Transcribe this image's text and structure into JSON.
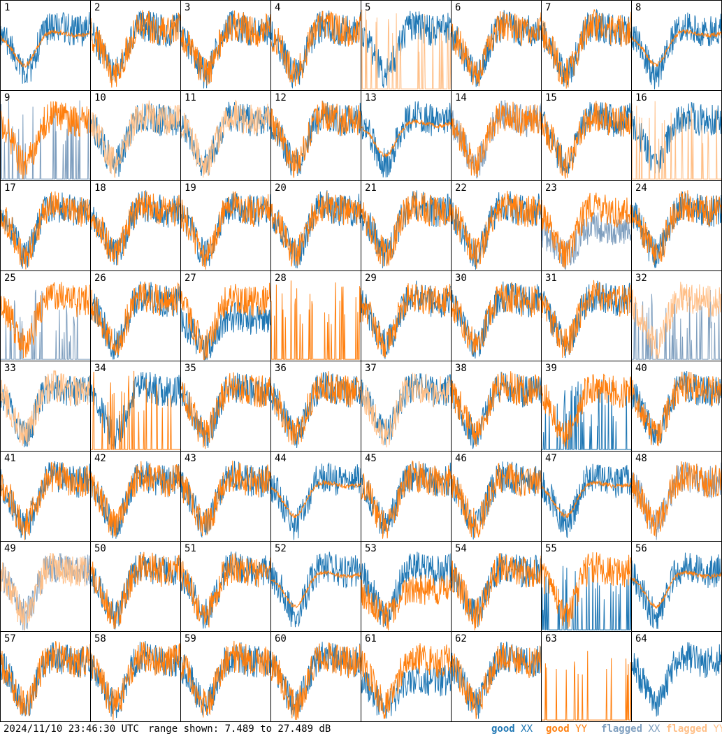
{
  "footer": {
    "timestamp": "2024/11/10 23:46:30 UTC",
    "range_text": "range shown: 7.489 to 27.489 dB"
  },
  "legend": [
    {
      "pre": "good",
      "pol": "XX",
      "color": "#1f77b4"
    },
    {
      "pre": "good",
      "pol": "YY",
      "color": "#ff7f0e"
    },
    {
      "pre": "flagged",
      "pol": "XX",
      "color": "#7f9fbf"
    },
    {
      "pre": "flagged",
      "pol": "YY",
      "color": "#ffbf87"
    }
  ],
  "colors": {
    "good_xx": "#1f77b4",
    "good_yy": "#ff7f0e",
    "flagged_xx": "#7f9fbf",
    "flagged_yy": "#ffbf87"
  },
  "chart_data": {
    "type": "line",
    "ylim": [
      7.489,
      27.489
    ],
    "grid": false,
    "panels": [
      {
        "label": "1",
        "xx": "good",
        "yy": "good",
        "xx_shape": "normal",
        "yy_shape": "flat"
      },
      {
        "label": "2",
        "xx": "good",
        "yy": "good",
        "xx_shape": "normal",
        "yy_shape": "normal"
      },
      {
        "label": "3",
        "xx": "good",
        "yy": "good",
        "xx_shape": "normal",
        "yy_shape": "normal"
      },
      {
        "label": "4",
        "xx": "good",
        "yy": "good",
        "xx_shape": "normal",
        "yy_shape": "normal"
      },
      {
        "label": "5",
        "xx": "good",
        "yy": "flagged",
        "xx_shape": "normal",
        "yy_shape": "spiky"
      },
      {
        "label": "6",
        "xx": "good",
        "yy": "good",
        "xx_shape": "normal",
        "yy_shape": "normal"
      },
      {
        "label": "7",
        "xx": "good",
        "yy": "good",
        "xx_shape": "normal",
        "yy_shape": "normal"
      },
      {
        "label": "8",
        "xx": "good",
        "yy": "good",
        "xx_shape": "normal",
        "yy_shape": "flat"
      },
      {
        "label": "9",
        "xx": "flagged",
        "yy": "good",
        "xx_shape": "spiky",
        "yy_shape": "normal"
      },
      {
        "label": "10",
        "xx": "good",
        "yy": "flagged",
        "xx_shape": "normal",
        "yy_shape": "normal"
      },
      {
        "label": "11",
        "xx": "good",
        "yy": "flagged",
        "xx_shape": "normal",
        "yy_shape": "normal"
      },
      {
        "label": "12",
        "xx": "good",
        "yy": "good",
        "xx_shape": "normal",
        "yy_shape": "normal"
      },
      {
        "label": "13",
        "xx": "good",
        "yy": "good",
        "xx_shape": "normal",
        "yy_shape": "flat"
      },
      {
        "label": "14",
        "xx": "flagged",
        "yy": "good",
        "xx_shape": "normal",
        "yy_shape": "normal"
      },
      {
        "label": "15",
        "xx": "good",
        "yy": "good",
        "xx_shape": "normal",
        "yy_shape": "normal"
      },
      {
        "label": "16",
        "xx": "good",
        "yy": "flagged",
        "xx_shape": "normal",
        "yy_shape": "spiky"
      },
      {
        "label": "17",
        "xx": "good",
        "yy": "good",
        "xx_shape": "normal",
        "yy_shape": "normal"
      },
      {
        "label": "18",
        "xx": "good",
        "yy": "good",
        "xx_shape": "normal",
        "yy_shape": "normal"
      },
      {
        "label": "19",
        "xx": "good",
        "yy": "good",
        "xx_shape": "normal",
        "yy_shape": "normal"
      },
      {
        "label": "20",
        "xx": "good",
        "yy": "good",
        "xx_shape": "normal",
        "yy_shape": "normal"
      },
      {
        "label": "21",
        "xx": "good",
        "yy": "good",
        "xx_shape": "normal",
        "yy_shape": "normal"
      },
      {
        "label": "22",
        "xx": "good",
        "yy": "good",
        "xx_shape": "normal",
        "yy_shape": "normal"
      },
      {
        "label": "23",
        "xx": "flagged",
        "yy": "good",
        "xx_shape": "low",
        "yy_shape": "normal"
      },
      {
        "label": "24",
        "xx": "good",
        "yy": "good",
        "xx_shape": "normal",
        "yy_shape": "normal"
      },
      {
        "label": "25",
        "xx": "flagged",
        "yy": "good",
        "xx_shape": "sparse",
        "yy_shape": "normal"
      },
      {
        "label": "26",
        "xx": "good",
        "yy": "good",
        "xx_shape": "normal",
        "yy_shape": "normal"
      },
      {
        "label": "27",
        "xx": "good",
        "yy": "good",
        "xx_shape": "low",
        "yy_shape": "normal"
      },
      {
        "label": "28",
        "xx": "none",
        "yy": "good",
        "xx_shape": "none",
        "yy_shape": "spiky"
      },
      {
        "label": "29",
        "xx": "good",
        "yy": "good",
        "xx_shape": "normal",
        "yy_shape": "normal"
      },
      {
        "label": "30",
        "xx": "good",
        "yy": "good",
        "xx_shape": "normal",
        "yy_shape": "normal"
      },
      {
        "label": "31",
        "xx": "good",
        "yy": "good",
        "xx_shape": "normal",
        "yy_shape": "normal"
      },
      {
        "label": "32",
        "xx": "flagged",
        "yy": "flagged",
        "xx_shape": "sparse",
        "yy_shape": "normal"
      },
      {
        "label": "33",
        "xx": "good",
        "yy": "flagged",
        "xx_shape": "normal",
        "yy_shape": "normal"
      },
      {
        "label": "34",
        "xx": "good",
        "yy": "good",
        "xx_shape": "normal",
        "yy_shape": "spiky"
      },
      {
        "label": "35",
        "xx": "good",
        "yy": "good",
        "xx_shape": "normal",
        "yy_shape": "normal"
      },
      {
        "label": "36",
        "xx": "good",
        "yy": "good",
        "xx_shape": "normal",
        "yy_shape": "normal"
      },
      {
        "label": "37",
        "xx": "good",
        "yy": "flagged",
        "xx_shape": "normal",
        "yy_shape": "normal"
      },
      {
        "label": "38",
        "xx": "good",
        "yy": "good",
        "xx_shape": "normal",
        "yy_shape": "normal"
      },
      {
        "label": "39",
        "xx": "good",
        "yy": "good",
        "xx_shape": "sparse",
        "yy_shape": "normal"
      },
      {
        "label": "40",
        "xx": "good",
        "yy": "good",
        "xx_shape": "normal",
        "yy_shape": "normal"
      },
      {
        "label": "41",
        "xx": "good",
        "yy": "good",
        "xx_shape": "normal",
        "yy_shape": "normal"
      },
      {
        "label": "42",
        "xx": "good",
        "yy": "good",
        "xx_shape": "normal",
        "yy_shape": "normal"
      },
      {
        "label": "43",
        "xx": "good",
        "yy": "good",
        "xx_shape": "normal",
        "yy_shape": "normal"
      },
      {
        "label": "44",
        "xx": "good",
        "yy": "good",
        "xx_shape": "normal",
        "yy_shape": "flat"
      },
      {
        "label": "45",
        "xx": "good",
        "yy": "good",
        "xx_shape": "normal",
        "yy_shape": "normal"
      },
      {
        "label": "46",
        "xx": "good",
        "yy": "good",
        "xx_shape": "normal",
        "yy_shape": "normal"
      },
      {
        "label": "47",
        "xx": "good",
        "yy": "good",
        "xx_shape": "normal",
        "yy_shape": "flat"
      },
      {
        "label": "48",
        "xx": "flagged",
        "yy": "good",
        "xx_shape": "normal",
        "yy_shape": "normal"
      },
      {
        "label": "49",
        "xx": "flagged",
        "yy": "flagged",
        "xx_shape": "normal",
        "yy_shape": "normal"
      },
      {
        "label": "50",
        "xx": "good",
        "yy": "good",
        "xx_shape": "normal",
        "yy_shape": "normal"
      },
      {
        "label": "51",
        "xx": "good",
        "yy": "good",
        "xx_shape": "normal",
        "yy_shape": "normal"
      },
      {
        "label": "52",
        "xx": "good",
        "yy": "good",
        "xx_shape": "normal",
        "yy_shape": "flat"
      },
      {
        "label": "53",
        "xx": "good",
        "yy": "good",
        "xx_shape": "normal",
        "yy_shape": "low"
      },
      {
        "label": "54",
        "xx": "good",
        "yy": "good",
        "xx_shape": "normal",
        "yy_shape": "normal"
      },
      {
        "label": "55",
        "xx": "good",
        "yy": "good",
        "xx_shape": "sparse",
        "yy_shape": "normal"
      },
      {
        "label": "56",
        "xx": "good",
        "yy": "good",
        "xx_shape": "normal",
        "yy_shape": "flat"
      },
      {
        "label": "57",
        "xx": "good",
        "yy": "good",
        "xx_shape": "normal",
        "yy_shape": "normal"
      },
      {
        "label": "58",
        "xx": "good",
        "yy": "good",
        "xx_shape": "normal",
        "yy_shape": "normal"
      },
      {
        "label": "59",
        "xx": "good",
        "yy": "good",
        "xx_shape": "normal",
        "yy_shape": "normal"
      },
      {
        "label": "60",
        "xx": "good",
        "yy": "good",
        "xx_shape": "normal",
        "yy_shape": "normal"
      },
      {
        "label": "61",
        "xx": "good",
        "yy": "good",
        "xx_shape": "low",
        "yy_shape": "normal"
      },
      {
        "label": "62",
        "xx": "good",
        "yy": "good",
        "xx_shape": "normal",
        "yy_shape": "normal"
      },
      {
        "label": "63",
        "xx": "none",
        "yy": "good",
        "xx_shape": "none",
        "yy_shape": "spiky"
      },
      {
        "label": "64",
        "xx": "good",
        "yy": "none",
        "xx_shape": "normal",
        "yy_shape": "none"
      }
    ]
  }
}
